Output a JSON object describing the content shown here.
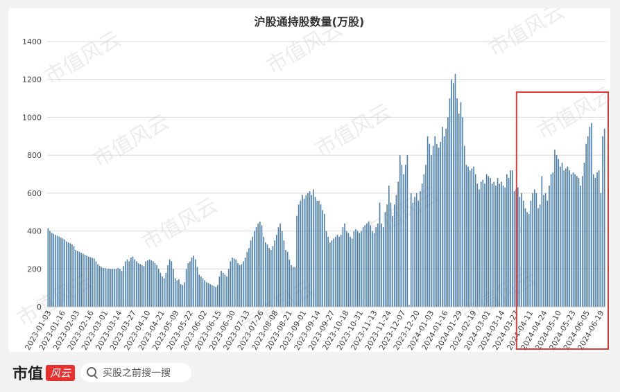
{
  "chart_data": {
    "type": "bar",
    "title": "沪股通持股数量(万股)",
    "xlabel": "",
    "ylabel": "",
    "ylim": [
      0,
      1400
    ],
    "yticks": [
      0,
      200,
      400,
      600,
      800,
      1000,
      1200,
      1400
    ],
    "grid": true,
    "legend": "none",
    "bar_color": "#4f81ad",
    "highlight_color": "#e53935",
    "x_tick_labels": [
      "2023-01-03",
      "2023-01-16",
      "2023-02-03",
      "2023-02-16",
      "2023-03-01",
      "2023-03-14",
      "2023-03-27",
      "2023-04-10",
      "2023-04-21",
      "2023-05-09",
      "2023-05-22",
      "2023-06-02",
      "2023-06-15",
      "2023-06-30",
      "2023-07-13",
      "2023-07-26",
      "2023-08-08",
      "2023-08-21",
      "2023-09-01",
      "2023-09-14",
      "2023-09-27",
      "2023-10-18",
      "2023-10-31",
      "2023-11-13",
      "2023-11-24",
      "2023-12-07",
      "2023-12-20",
      "2024-01-03",
      "2024-01-16",
      "2024-01-29",
      "2024-02-19",
      "2024-03-01",
      "2024-03-14",
      "2024-03-27",
      "2024-04-11",
      "2024-04-24",
      "2024-05-10",
      "2024-05-23",
      "2024-06-05",
      "2024-06-19"
    ],
    "values": [
      415,
      400,
      390,
      385,
      380,
      375,
      370,
      365,
      360,
      355,
      345,
      340,
      335,
      330,
      320,
      300,
      295,
      290,
      285,
      280,
      275,
      270,
      265,
      262,
      258,
      255,
      240,
      225,
      215,
      210,
      205,
      205,
      200,
      200,
      200,
      200,
      200,
      200,
      205,
      200,
      190,
      215,
      240,
      250,
      240,
      260,
      265,
      250,
      240,
      230,
      225,
      220,
      215,
      240,
      245,
      250,
      245,
      240,
      230,
      220,
      200,
      180,
      160,
      150,
      180,
      220,
      250,
      240,
      200,
      150,
      140,
      145,
      120,
      115,
      130,
      200,
      230,
      240,
      260,
      270,
      250,
      210,
      170,
      160,
      150,
      140,
      130,
      125,
      120,
      115,
      110,
      105,
      115,
      160,
      190,
      180,
      170,
      160,
      200,
      240,
      260,
      255,
      250,
      230,
      220,
      225,
      240,
      260,
      290,
      310,
      350,
      370,
      400,
      420,
      440,
      450,
      430,
      370,
      340,
      330,
      310,
      300,
      320,
      350,
      380,
      420,
      440,
      400,
      350,
      300,
      290,
      250,
      220,
      210,
      210,
      480,
      540,
      560,
      590,
      570,
      590,
      600,
      610,
      590,
      620,
      580,
      560,
      560,
      540,
      510,
      490,
      400,
      370,
      340,
      350,
      360,
      370,
      380,
      370,
      380,
      420,
      440,
      400,
      390,
      370,
      360,
      400,
      410,
      400,
      390,
      400,
      420,
      430,
      440,
      450,
      430,
      400,
      390,
      420,
      440,
      550,
      440,
      420,
      500,
      540,
      640,
      550,
      480,
      540,
      590,
      660,
      800,
      750,
      700,
      750,
      800,
      10,
      600,
      550,
      580,
      600,
      560,
      610,
      650,
      700,
      750,
      900,
      860,
      800,
      850,
      900,
      860,
      840,
      870,
      950,
      900,
      940,
      1000,
      1100,
      1200,
      1180,
      1230,
      1100,
      1020,
      1080,
      1000,
      850,
      750,
      740,
      720,
      730,
      740,
      700,
      650,
      620,
      660,
      670,
      650,
      700,
      690,
      680,
      650,
      660,
      640,
      680,
      650,
      660,
      640,
      630,
      700,
      680,
      720,
      720,
      610,
      620,
      630,
      580,
      600,
      560,
      520,
      500,
      490,
      560,
      600,
      620,
      600,
      520,
      540,
      690,
      590,
      600,
      560,
      640,
      700,
      710,
      830,
      800,
      780,
      740,
      760,
      720,
      730,
      740,
      720,
      700,
      710,
      700,
      690,
      680,
      640,
      690,
      760,
      860,
      900,
      950,
      970,
      700,
      680,
      710,
      720,
      600,
      900,
      940
    ],
    "highlight_range": [
      "2024-04-11",
      "2024-06-19"
    ]
  },
  "watermark": "市值风云",
  "footer": {
    "brand_text": "市值",
    "brand_badge": "风云",
    "search_placeholder": "买股之前搜一搜"
  }
}
